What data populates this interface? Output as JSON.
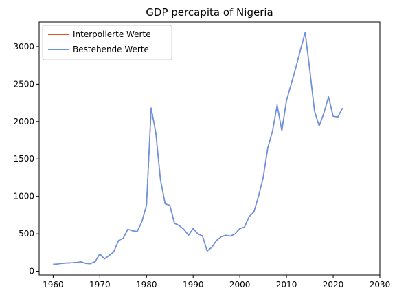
{
  "chart_data": {
    "type": "line",
    "title": "GDP percapita of Nigeria",
    "xlabel": "",
    "ylabel": "",
    "xlim": [
      1957,
      2030
    ],
    "ylim": [
      -50,
      3330
    ],
    "x_ticks": [
      1960,
      1970,
      1980,
      1990,
      2000,
      2010,
      2020,
      2030
    ],
    "y_ticks": [
      0,
      500,
      1000,
      1500,
      2000,
      2500,
      3000
    ],
    "grid": false,
    "legend_position": "top-left",
    "series": [
      {
        "name": "Interpolierte Werte",
        "color": "#e8501a",
        "x": [
          1960,
          1961,
          1962,
          1963,
          1964,
          1965,
          1966,
          1967,
          1968,
          1969,
          1970,
          1971,
          1972,
          1973,
          1974,
          1975,
          1976,
          1977,
          1978,
          1979,
          1980,
          1981,
          1982,
          1983,
          1984,
          1985,
          1986,
          1987,
          1988,
          1989,
          1990,
          1991,
          1992,
          1993,
          1994,
          1995,
          1996,
          1997,
          1998,
          1999,
          2000,
          2001,
          2002,
          2003,
          2004,
          2005,
          2006,
          2007,
          2008,
          2009,
          2010,
          2011,
          2012,
          2013,
          2014,
          2015,
          2016,
          2017,
          2018,
          2019,
          2020,
          2021,
          2022
        ],
        "values": [
          93,
          97,
          106,
          110,
          113,
          117,
          125,
          104,
          101,
          130,
          230,
          165,
          210,
          260,
          410,
          440,
          560,
          540,
          530,
          660,
          880,
          2180,
          1850,
          1220,
          900,
          880,
          640,
          610,
          560,
          480,
          570,
          500,
          470,
          270,
          320,
          410,
          460,
          480,
          470,
          500,
          570,
          590,
          730,
          790,
          1000,
          1250,
          1650,
          1870,
          2220,
          1880,
          2280,
          2500,
          2720,
          2960,
          3190,
          2680,
          2140,
          1940,
          2110,
          2330,
          2070,
          2060,
          2180
        ]
      },
      {
        "name": "Bestehende Werte",
        "color": "#6495ed",
        "x": [
          1960,
          1961,
          1962,
          1963,
          1964,
          1965,
          1966,
          1967,
          1968,
          1969,
          1970,
          1971,
          1972,
          1973,
          1974,
          1975,
          1976,
          1977,
          1978,
          1979,
          1980,
          1981,
          1982,
          1983,
          1984,
          1985,
          1986,
          1987,
          1988,
          1989,
          1990,
          1991,
          1992,
          1993,
          1994,
          1995,
          1996,
          1997,
          1998,
          1999,
          2000,
          2001,
          2002,
          2003,
          2004,
          2005,
          2006,
          2007,
          2008,
          2009,
          2010,
          2011,
          2012,
          2013,
          2014,
          2015,
          2016,
          2017,
          2018,
          2019,
          2020,
          2021,
          2022
        ],
        "values": [
          93,
          97,
          106,
          110,
          113,
          117,
          125,
          104,
          101,
          130,
          230,
          165,
          210,
          260,
          410,
          440,
          560,
          540,
          530,
          660,
          880,
          2180,
          1850,
          1220,
          900,
          880,
          640,
          610,
          560,
          480,
          570,
          500,
          470,
          270,
          320,
          410,
          460,
          480,
          470,
          500,
          570,
          590,
          730,
          790,
          1000,
          1250,
          1650,
          1870,
          2220,
          1880,
          2280,
          2500,
          2720,
          2960,
          3190,
          2680,
          2140,
          1940,
          2110,
          2330,
          2070,
          2060,
          2180
        ]
      }
    ]
  }
}
